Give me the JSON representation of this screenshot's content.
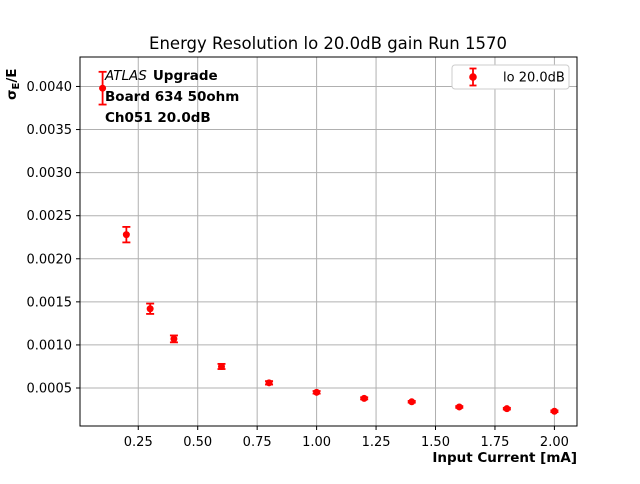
{
  "colors": {
    "series": "#ff0000",
    "grid": "#b0b0b0",
    "spine": "#000000",
    "background": "#ffffff",
    "legend_border": "#cccccc"
  },
  "annotation": {
    "experiment": "ATLAS",
    "label": "Upgrade",
    "board": "Board 634 50ohm",
    "channel": "Ch051 20.0dB"
  },
  "chart_data": {
    "type": "scatter",
    "title": "Energy Resolution lo 20.0dB gain Run 1570",
    "xlabel": "Input Current [mA]",
    "ylabel_sigma": "σ",
    "ylabel_sub": "E",
    "ylabel_rest": "/E",
    "legend": [
      "lo 20.0dB"
    ],
    "legend_position": "upper right",
    "grid": true,
    "x": [
      0.1,
      0.2,
      0.3,
      0.4,
      0.6,
      0.8,
      1.0,
      1.2,
      1.4,
      1.6,
      1.8,
      2.0
    ],
    "y": [
      0.00398,
      0.00228,
      0.00142,
      0.00107,
      0.00075,
      0.00056,
      0.00045,
      0.00038,
      0.00034,
      0.00028,
      0.00026,
      0.00023
    ],
    "yerr": [
      0.00019,
      9e-05,
      6e-05,
      4e-05,
      3e-05,
      2e-05,
      1.5e-05,
      1.2e-05,
      1e-05,
      1e-05,
      1e-05,
      1e-05
    ],
    "xlim": [
      0.005,
      2.095
    ],
    "ylim": [
      5.9e-05,
      0.004342
    ],
    "xticks": [
      0.25,
      0.5,
      0.75,
      1.0,
      1.25,
      1.5,
      1.75,
      2.0
    ],
    "yticks": [
      0.0005,
      0.001,
      0.0015,
      0.002,
      0.0025,
      0.003,
      0.0035,
      0.004
    ]
  }
}
